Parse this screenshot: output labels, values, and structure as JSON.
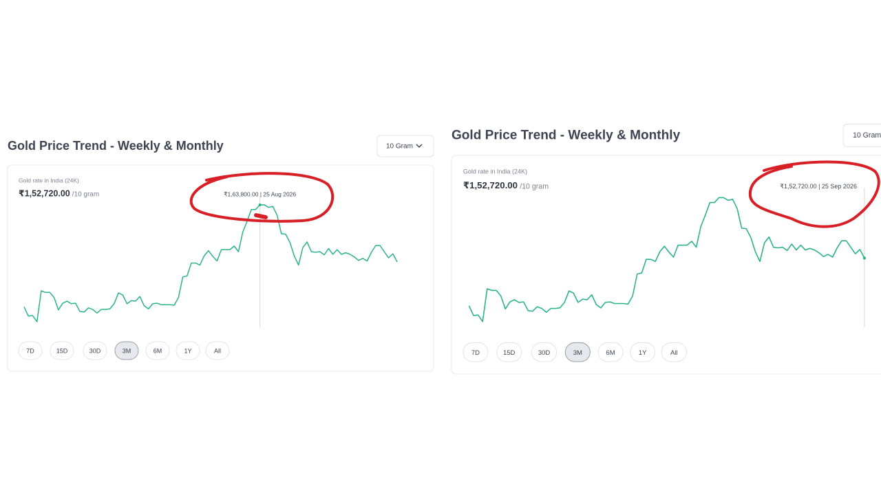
{
  "chart_data": [
    {
      "type": "line",
      "title": "Gold Price Trend - Weekly & Monthly",
      "unit_selector": "10 Gram",
      "subtitle": "Gold rate in India (24K)",
      "price": "₹1,52,720.00",
      "price_unit": "/10 gram",
      "highlight": {
        "value": 163800,
        "label": "₹1,63,800.00 | 25 Aug 2026"
      },
      "ranges": [
        "7D",
        "15D",
        "30D",
        "3M",
        "6M",
        "1Y",
        "All"
      ],
      "selected_range": "3M",
      "color": "#2bb38a",
      "ylim": [
        139500,
        170200
      ],
      "values": [
        144000,
        142200,
        142300,
        141100,
        147100,
        146800,
        146800,
        145800,
        143400,
        144700,
        145100,
        144600,
        144700,
        143100,
        143000,
        143800,
        143500,
        142800,
        143500,
        143500,
        143600,
        144600,
        146700,
        146300,
        144600,
        145200,
        145100,
        146000,
        144200,
        143600,
        144600,
        144700,
        144400,
        144400,
        144400,
        144300,
        145800,
        149800,
        150000,
        152500,
        152500,
        152100,
        153900,
        154900,
        153800,
        152900,
        155100,
        155100,
        155100,
        155800,
        154700,
        158500,
        160600,
        162900,
        162900,
        163800,
        163800,
        163300,
        163500,
        161800,
        158200,
        158100,
        156500,
        153900,
        152100,
        155500,
        156600,
        154700,
        154600,
        154700,
        154100,
        155300,
        154200,
        155100,
        154200,
        154500,
        154200,
        153700,
        153000,
        153400,
        152900,
        154600,
        155900,
        155900,
        154700,
        153500,
        154300,
        152720
      ]
    },
    {
      "type": "line",
      "title": "Gold Price Trend - Weekly & Monthly",
      "unit_selector": "10 Gram",
      "subtitle": "Gold rate in India (24K)",
      "price": "₹1,52,720.00",
      "price_unit": "/10 gram",
      "highlight": {
        "value": 152720,
        "label": "₹1,52,720.00 | 25 Sep 2026"
      },
      "ranges": [
        "7D",
        "15D",
        "30D",
        "3M",
        "6M",
        "1Y",
        "All"
      ],
      "selected_range": "3M",
      "color": "#2bb38a",
      "ylim": [
        139500,
        170200
      ],
      "values": [
        144000,
        142200,
        142300,
        141100,
        147100,
        146800,
        146800,
        145800,
        143400,
        144700,
        145100,
        144600,
        144700,
        143100,
        143000,
        143800,
        143500,
        142800,
        143500,
        143500,
        143600,
        144600,
        146700,
        146300,
        144600,
        145200,
        145100,
        146000,
        144200,
        143600,
        144600,
        144700,
        144400,
        144400,
        144400,
        144300,
        145800,
        149800,
        150000,
        152500,
        152500,
        152100,
        153900,
        154900,
        153800,
        152900,
        155100,
        155100,
        155100,
        155800,
        154700,
        158500,
        160600,
        162900,
        162900,
        163800,
        163800,
        163300,
        163500,
        161800,
        158200,
        158100,
        156500,
        153900,
        152100,
        155500,
        156600,
        154700,
        154600,
        154700,
        154100,
        155300,
        154200,
        155100,
        154200,
        154500,
        154200,
        153700,
        153000,
        153400,
        152900,
        154600,
        155900,
        155900,
        154700,
        153500,
        154300,
        152720
      ]
    }
  ]
}
